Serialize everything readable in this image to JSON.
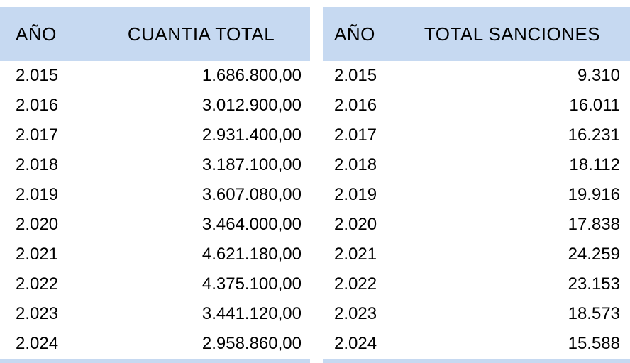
{
  "colors": {
    "header_bg": "#C6D9F1",
    "text": "#000000",
    "background": "#FFFFFF"
  },
  "tables": {
    "left": {
      "headers": [
        "AÑO",
        "CUANTIA TOTAL"
      ],
      "rows": [
        [
          "2.015",
          "1.686.800,00"
        ],
        [
          "2.016",
          "3.012.900,00"
        ],
        [
          "2.017",
          "2.931.400,00"
        ],
        [
          "2.018",
          "3.187.100,00"
        ],
        [
          "2.019",
          "3.607.080,00"
        ],
        [
          "2.020",
          "3.464.000,00"
        ],
        [
          "2.021",
          "4.621.180,00"
        ],
        [
          "2.022",
          "4.375.100,00"
        ],
        [
          "2.023",
          "3.441.120,00"
        ],
        [
          "2.024",
          "2.958.860,00"
        ]
      ]
    },
    "right": {
      "headers": [
        "AÑO",
        "TOTAL SANCIONES"
      ],
      "rows": [
        [
          "2.015",
          "9.310"
        ],
        [
          "2.016",
          "16.011"
        ],
        [
          "2.017",
          "16.231"
        ],
        [
          "2.018",
          "18.112"
        ],
        [
          "2.019",
          "19.916"
        ],
        [
          "2.020",
          "17.838"
        ],
        [
          "2.021",
          "24.259"
        ],
        [
          "2.022",
          "23.153"
        ],
        [
          "2.023",
          "18.573"
        ],
        [
          "2.024",
          "15.588"
        ]
      ]
    }
  }
}
